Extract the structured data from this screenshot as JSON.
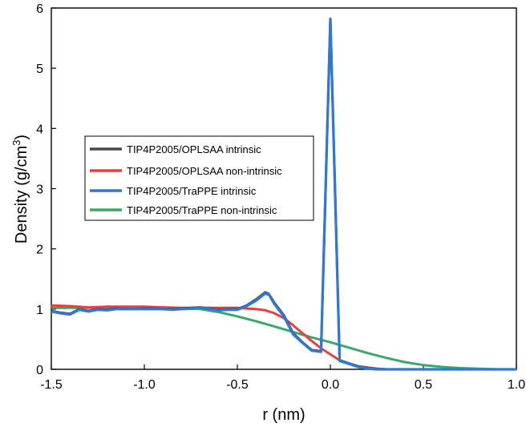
{
  "chart_data": {
    "type": "line",
    "title": "",
    "xlabel": "r (nm)",
    "ylabel_main": "Density (g/cm",
    "ylabel_sup": "3",
    "ylabel_close": ")",
    "xlim": [
      -1.5,
      1.0
    ],
    "ylim": [
      0,
      6
    ],
    "xticks": [
      -1.5,
      -1.0,
      -0.5,
      0.0,
      0.5,
      1.0
    ],
    "xtick_labels": [
      "-1.5",
      "-1.0",
      "-0.5",
      "0.0",
      "0.5",
      "1.0"
    ],
    "yticks": [
      0,
      1,
      2,
      3,
      4,
      5,
      6
    ],
    "ytick_labels": [
      "0",
      "1",
      "2",
      "3",
      "4",
      "5",
      "6"
    ],
    "grid": false,
    "legend_position": "center-left",
    "series": [
      {
        "name": "TIP4P2005/OPLSAA intrinsic",
        "color": "#4a4a4a",
        "x": [
          -1.5,
          -1.45,
          -1.4,
          -1.35,
          -1.3,
          -1.25,
          -1.2,
          -1.15,
          -1.1,
          -1.05,
          -1.0,
          -0.95,
          -0.9,
          -0.85,
          -0.8,
          -0.75,
          -0.7,
          -0.65,
          -0.6,
          -0.55,
          -0.5,
          -0.45,
          -0.4,
          -0.35,
          -0.33,
          -0.3,
          -0.25,
          -0.2,
          -0.15,
          -0.1,
          -0.05,
          0.0,
          0.05,
          0.1,
          0.15,
          0.2,
          0.25,
          0.3,
          0.4,
          0.5,
          0.6,
          0.7,
          0.8,
          0.9,
          1.0
        ],
        "y": [
          0.97,
          0.94,
          0.92,
          1.0,
          0.97,
          1.0,
          0.99,
          1.01,
          1.0,
          1.0,
          1.01,
          1.01,
          1.0,
          1.0,
          1.01,
          1.02,
          1.03,
          1.01,
          0.99,
          1.0,
          1.0,
          1.06,
          1.16,
          1.28,
          1.25,
          1.1,
          0.9,
          0.6,
          0.45,
          0.32,
          0.3,
          5.82,
          0.15,
          0.1,
          0.05,
          0.02,
          0.01,
          0.0,
          0.0,
          0.0,
          0.0,
          0.0,
          0.0,
          0.0,
          0.0
        ]
      },
      {
        "name": "TIP4P2005/OPLSAA non-intrinsic",
        "color": "#e8413c",
        "x": [
          -1.5,
          -1.4,
          -1.3,
          -1.2,
          -1.1,
          -1.0,
          -0.9,
          -0.8,
          -0.7,
          -0.6,
          -0.5,
          -0.45,
          -0.4,
          -0.35,
          -0.3,
          -0.25,
          -0.2,
          -0.15,
          -0.1,
          -0.05,
          0.0,
          0.05,
          0.1,
          0.15,
          0.2,
          0.25,
          0.3,
          0.4,
          0.5,
          0.6,
          0.7,
          0.8,
          0.9,
          1.0
        ],
        "y": [
          1.06,
          1.05,
          1.03,
          1.04,
          1.04,
          1.04,
          1.03,
          1.02,
          1.02,
          1.02,
          1.02,
          1.01,
          1.0,
          0.98,
          0.93,
          0.85,
          0.73,
          0.6,
          0.47,
          0.35,
          0.25,
          0.15,
          0.09,
          0.05,
          0.03,
          0.01,
          0.0,
          0.0,
          0.0,
          0.0,
          0.0,
          0.0,
          0.0,
          0.0
        ]
      },
      {
        "name": "TIP4P2005/TraPPE intrinsic",
        "color": "#2f78d6",
        "x": [
          -1.5,
          -1.45,
          -1.4,
          -1.35,
          -1.3,
          -1.25,
          -1.2,
          -1.15,
          -1.1,
          -1.05,
          -1.0,
          -0.95,
          -0.9,
          -0.85,
          -0.8,
          -0.75,
          -0.7,
          -0.65,
          -0.6,
          -0.55,
          -0.5,
          -0.45,
          -0.4,
          -0.35,
          -0.33,
          -0.3,
          -0.25,
          -0.2,
          -0.15,
          -0.1,
          -0.05,
          0.0,
          0.05,
          0.1,
          0.15,
          0.2,
          0.25,
          0.3,
          0.4,
          0.5,
          0.6,
          0.7,
          0.8,
          0.9,
          1.0
        ],
        "y": [
          0.96,
          0.93,
          0.91,
          0.99,
          0.96,
          0.99,
          0.98,
          1.0,
          1.0,
          1.0,
          1.0,
          1.0,
          1.0,
          0.99,
          1.0,
          1.01,
          1.02,
          1.0,
          0.98,
          0.99,
          0.99,
          1.05,
          1.14,
          1.26,
          1.24,
          1.08,
          0.88,
          0.58,
          0.44,
          0.31,
          0.29,
          5.82,
          0.14,
          0.09,
          0.04,
          0.01,
          0.0,
          0.0,
          0.0,
          0.0,
          0.0,
          0.0,
          0.0,
          0.0,
          0.0
        ]
      },
      {
        "name": "TIP4P2005/TraPPE non-intrinsic",
        "color": "#3aa866",
        "x": [
          -1.5,
          -1.4,
          -1.3,
          -1.2,
          -1.1,
          -1.0,
          -0.9,
          -0.8,
          -0.7,
          -0.6,
          -0.5,
          -0.4,
          -0.3,
          -0.2,
          -0.1,
          0.0,
          0.1,
          0.2,
          0.3,
          0.4,
          0.5,
          0.6,
          0.7,
          0.8,
          0.9,
          1.0
        ],
        "y": [
          1.02,
          1.02,
          1.02,
          1.02,
          1.02,
          1.02,
          1.01,
          1.01,
          1.0,
          0.95,
          0.88,
          0.8,
          0.71,
          0.62,
          0.53,
          0.45,
          0.36,
          0.27,
          0.19,
          0.12,
          0.07,
          0.04,
          0.02,
          0.01,
          0.0,
          0.0
        ]
      }
    ]
  }
}
